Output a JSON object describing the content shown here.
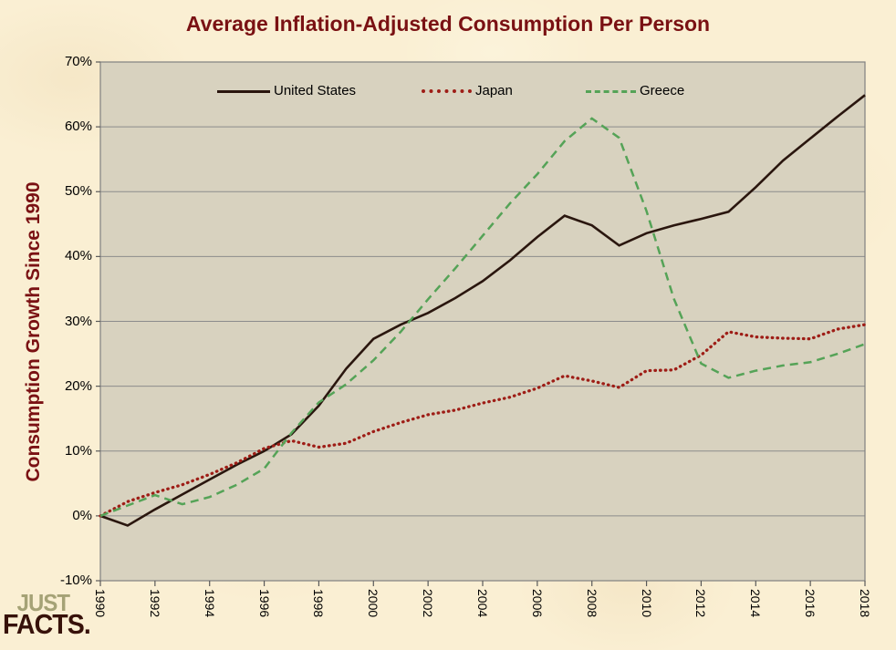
{
  "logo": {
    "line1": "JUST",
    "line2": "FACTS."
  },
  "colors": {
    "page_bg": "#FAEFD3",
    "plot_bg": "#D8D2BF",
    "gridline": "#8C8C8C",
    "axis_border": "#808080",
    "tick": "#595959",
    "title_text": "#7A1113",
    "us_line": "#2A160E",
    "japan_line": "#9E1D16",
    "greece_line": "#55A357",
    "logo_just": "#A5A276",
    "logo_facts": "#371109"
  },
  "chart_data": {
    "type": "line",
    "title": "Average Inflation-Adjusted Consumption Per Person",
    "xlabel": "",
    "ylabel": "Consumption Growth Since 1990",
    "ylim": [
      -10,
      70
    ],
    "grid": true,
    "legend_position": "top-inside",
    "x": [
      1990,
      1991,
      1992,
      1993,
      1994,
      1995,
      1996,
      1997,
      1998,
      1999,
      2000,
      2001,
      2002,
      2003,
      2004,
      2005,
      2006,
      2007,
      2008,
      2009,
      2010,
      2011,
      2012,
      2013,
      2014,
      2015,
      2016,
      2017,
      2018
    ],
    "x_tick_years": [
      1990,
      1992,
      1994,
      1996,
      1998,
      2000,
      2002,
      2004,
      2006,
      2008,
      2010,
      2012,
      2014,
      2016,
      2018
    ],
    "x_tick_labels": [
      "1990",
      "1992",
      "1994",
      "1996",
      "1998",
      "2000",
      "2002",
      "2004",
      "2006",
      "2008",
      "2010",
      "2012",
      "2014",
      "2016",
      "2018"
    ],
    "y_ticks": [
      70,
      60,
      50,
      40,
      30,
      20,
      10,
      0,
      -10
    ],
    "y_tick_labels": [
      "70%",
      "60%",
      "50%",
      "40%",
      "30%",
      "20%",
      "10%",
      "0%",
      "-10%"
    ],
    "series": [
      {
        "name": "United States",
        "style": "solid",
        "color": "#2A160E",
        "values": [
          0,
          -1.5,
          1.0,
          3.3,
          5.6,
          7.9,
          10.0,
          12.6,
          17.0,
          22.7,
          27.3,
          29.5,
          31.3,
          33.6,
          36.2,
          39.4,
          43.0,
          46.3,
          44.8,
          41.7,
          43.6,
          44.8,
          45.8,
          46.9,
          50.7,
          54.8,
          58.2,
          61.6,
          64.9
        ]
      },
      {
        "name": "Japan",
        "style": "dotted",
        "color": "#9E1D16",
        "values": [
          0,
          2.2,
          3.6,
          4.8,
          6.4,
          8.2,
          10.4,
          11.6,
          10.6,
          11.2,
          13.0,
          14.4,
          15.6,
          16.3,
          17.4,
          18.3,
          19.7,
          21.6,
          20.8,
          19.8,
          22.4,
          22.5,
          24.8,
          28.4,
          27.6,
          27.4,
          27.3,
          28.8,
          29.5
        ]
      },
      {
        "name": "Greece",
        "style": "dashed",
        "color": "#55A357",
        "values": [
          0,
          1.6,
          3.2,
          1.8,
          2.9,
          4.8,
          7.3,
          12.8,
          17.5,
          20.3,
          24.0,
          28.4,
          33.4,
          38.2,
          43.2,
          48.2,
          52.7,
          57.8,
          61.3,
          58.3,
          47.0,
          33.5,
          23.5,
          21.3,
          22.4,
          23.2,
          23.7,
          25.0,
          26.5
        ]
      }
    ]
  }
}
